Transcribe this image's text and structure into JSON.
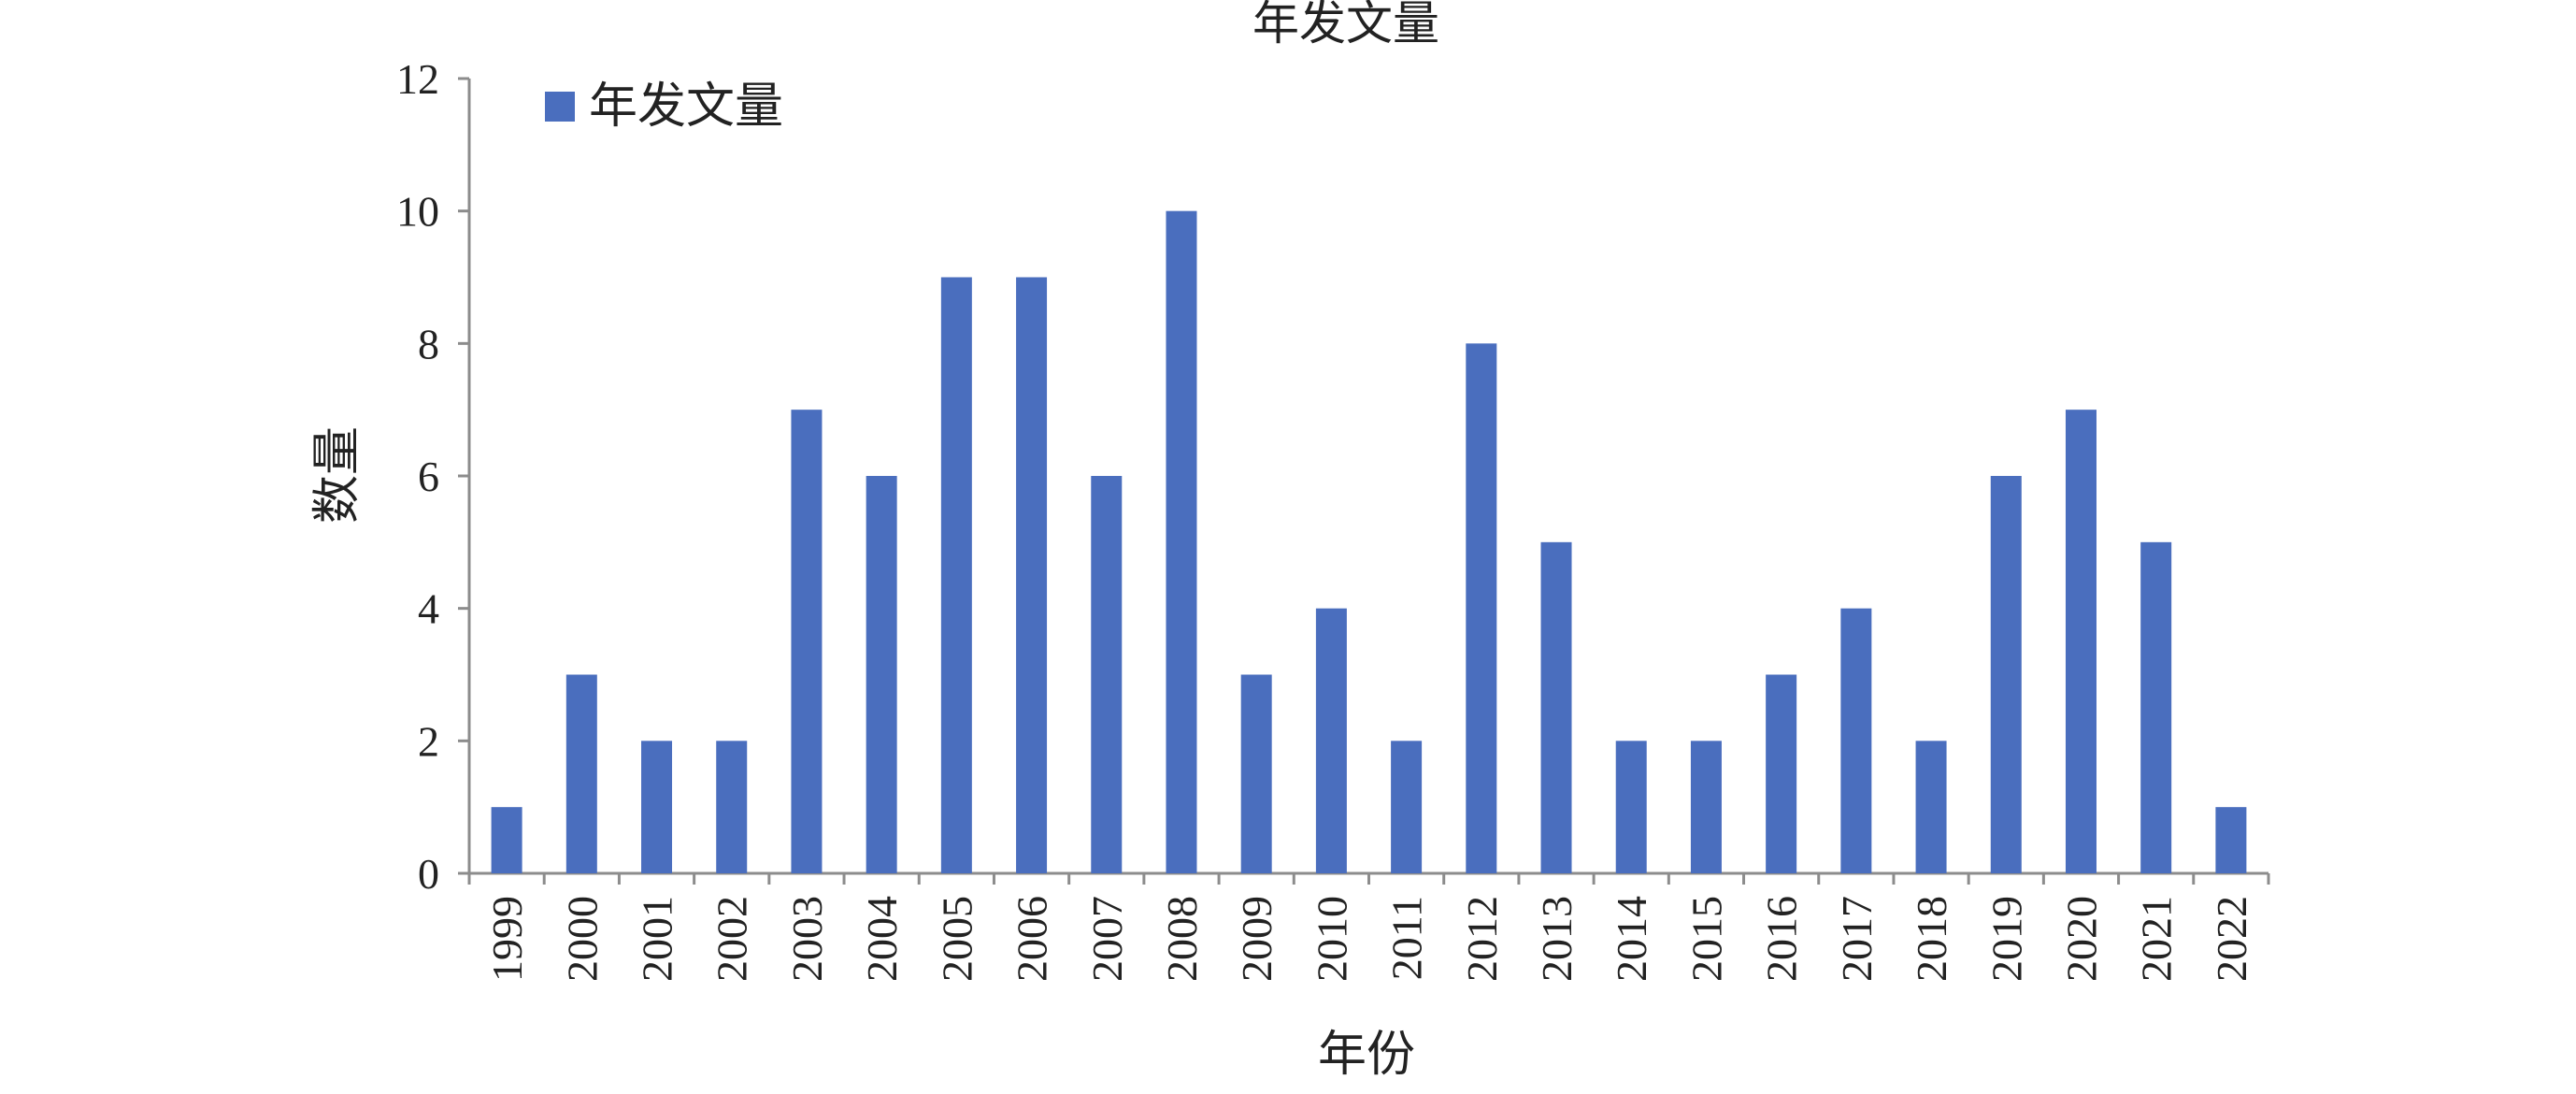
{
  "chart_data": {
    "type": "bar",
    "title": "年发文量",
    "xlabel": "年份",
    "ylabel": "数量",
    "ylim": [
      0,
      12
    ],
    "yticks": [
      0,
      2,
      4,
      6,
      8,
      10,
      12
    ],
    "grid": false,
    "legend_position": "top-left",
    "categories": [
      "1999",
      "2000",
      "2001",
      "2002",
      "2003",
      "2004",
      "2005",
      "2006",
      "2007",
      "2008",
      "2009",
      "2010",
      "2011",
      "2012",
      "2013",
      "2014",
      "2015",
      "2016",
      "2017",
      "2018",
      "2019",
      "2020",
      "2021",
      "2022"
    ],
    "series": [
      {
        "name": "年发文量",
        "color": "#4A6EBE",
        "values": [
          1,
          3,
          2,
          2,
          7,
          6,
          9,
          9,
          6,
          10,
          3,
          4,
          2,
          8,
          5,
          2,
          2,
          3,
          4,
          2,
          6,
          7,
          5,
          1
        ]
      }
    ]
  }
}
